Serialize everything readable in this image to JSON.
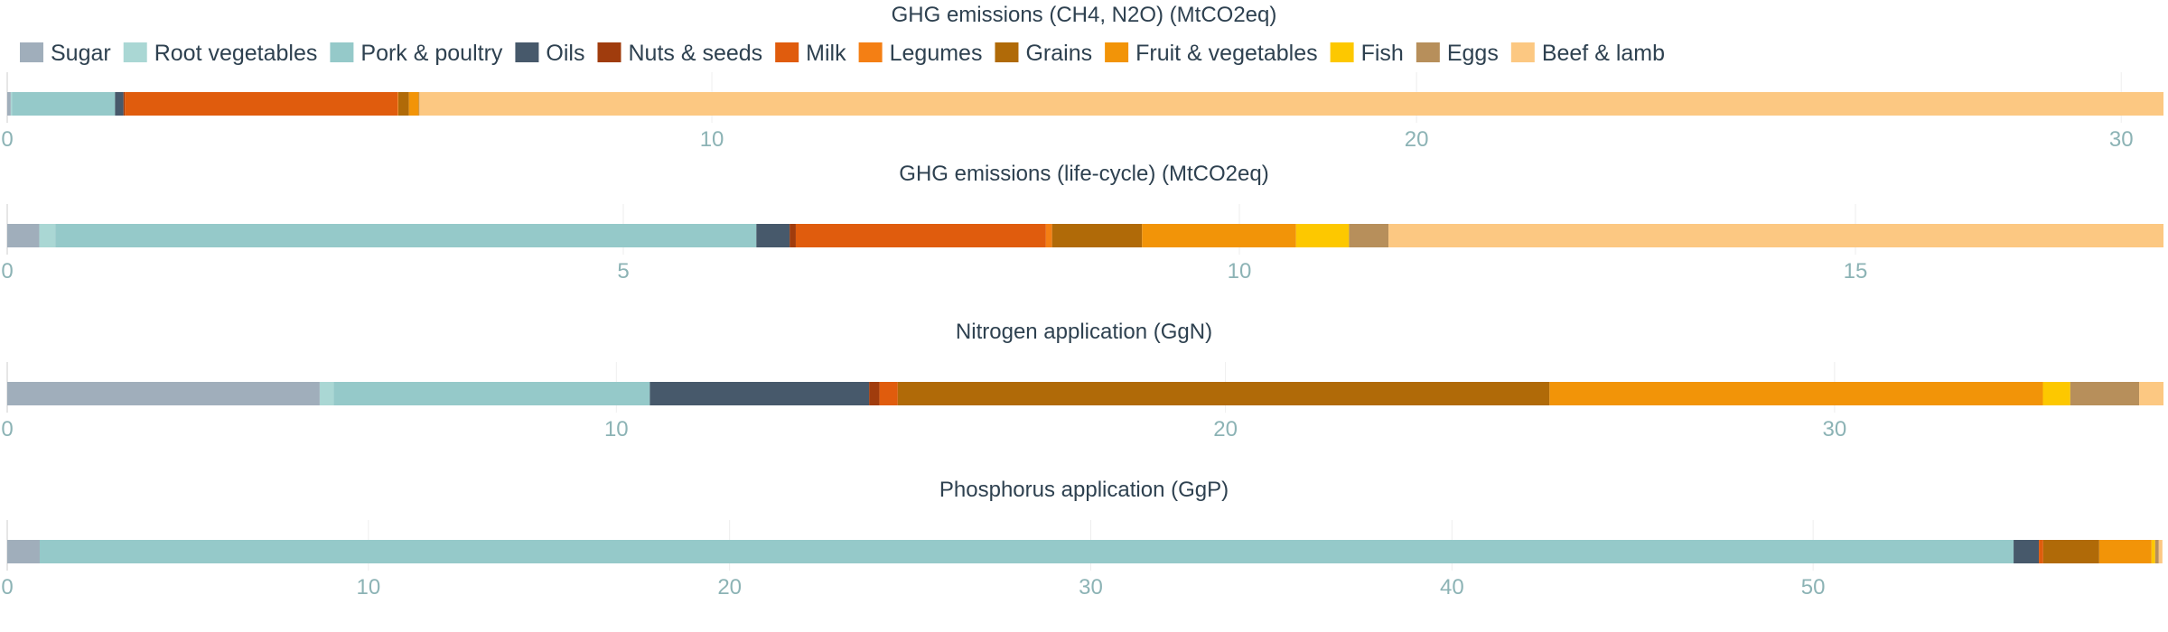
{
  "chart_data": {
    "type": "bar",
    "orientation": "horizontal",
    "stacked": true,
    "legend": {
      "placement": "top-left",
      "items": [
        {
          "name": "Sugar",
          "color": "#a0aebb"
        },
        {
          "name": "Root vegetables",
          "color": "#aad7d4"
        },
        {
          "name": "Pork & poultry",
          "color": "#95c9c9"
        },
        {
          "name": "Oils",
          "color": "#47596b"
        },
        {
          "name": "Nuts & seeds",
          "color": "#a03c0d"
        },
        {
          "name": "Milk",
          "color": "#e05c0d"
        },
        {
          "name": "Legumes",
          "color": "#f47f14"
        },
        {
          "name": "Grains",
          "color": "#b06a08"
        },
        {
          "name": "Fruit & vegetables",
          "color": "#f29408"
        },
        {
          "name": "Fish",
          "color": "#fdc800"
        },
        {
          "name": "Eggs",
          "color": "#b78f5b"
        },
        {
          "name": "Beef & lamb",
          "color": "#fcc882"
        }
      ]
    },
    "grid": true,
    "panels": [
      {
        "title": "GHG emissions (CH4, N2O) (MtCO2eq)",
        "xlim": [
          0,
          30.6
        ],
        "ticks": [
          0,
          10,
          20,
          30
        ],
        "tick_labels": [
          "0",
          "10",
          "20",
          "30"
        ],
        "values": {
          "Sugar": 0.05,
          "Root vegetables": 0.02,
          "Pork & poultry": 1.46,
          "Oils": 0.12,
          "Nuts & seeds": 0.02,
          "Milk": 3.87,
          "Legumes": 0.01,
          "Grains": 0.15,
          "Fruit & vegetables": 0.14,
          "Fish": 0.0,
          "Eggs": 0.01,
          "Beef & lamb": 24.75
        }
      },
      {
        "title": "GHG emissions (life-cycle) (MtCO2eq)",
        "xlim": [
          0,
          17.5
        ],
        "ticks": [
          0,
          5,
          10,
          15
        ],
        "tick_labels": [
          "0",
          "5",
          "10",
          "15"
        ],
        "values": {
          "Sugar": 0.26,
          "Root vegetables": 0.13,
          "Pork & poultry": 5.69,
          "Oils": 0.27,
          "Nuts & seeds": 0.05,
          "Milk": 2.03,
          "Legumes": 0.05,
          "Grains": 0.73,
          "Fruit & vegetables": 1.25,
          "Fish": 0.43,
          "Eggs": 0.32,
          "Beef & lamb": 6.29
        }
      },
      {
        "title": "Nitrogen application (GgN)",
        "xlim": [
          0,
          35.4
        ],
        "ticks": [
          0,
          10,
          20,
          30
        ],
        "tick_labels": [
          "0",
          "10",
          "20",
          "30"
        ],
        "values": {
          "Sugar": 5.13,
          "Root vegetables": 0.23,
          "Pork & poultry": 5.19,
          "Oils": 3.6,
          "Nuts & seeds": 0.17,
          "Milk": 0.3,
          "Legumes": 0.0,
          "Grains": 10.7,
          "Fruit & vegetables": 8.1,
          "Fish": 0.45,
          "Eggs": 1.13,
          "Beef & lamb": 0.4
        }
      },
      {
        "title": "Phosphorus application (GgP)",
        "xlim": [
          0,
          59.7
        ],
        "ticks": [
          0,
          10,
          20,
          30,
          40,
          50
        ],
        "tick_labels": [
          "0",
          "10",
          "20",
          "30",
          "40",
          "50"
        ],
        "values": {
          "Sugar": 0.9,
          "Root vegetables": 0.0,
          "Pork & poultry": 54.65,
          "Oils": 0.7,
          "Nuts & seeds": 0.0,
          "Milk": 0.12,
          "Legumes": 0.0,
          "Grains": 1.55,
          "Fruit & vegetables": 1.45,
          "Fish": 0.1,
          "Eggs": 0.1,
          "Beef & lamb": 0.1
        }
      }
    ]
  }
}
